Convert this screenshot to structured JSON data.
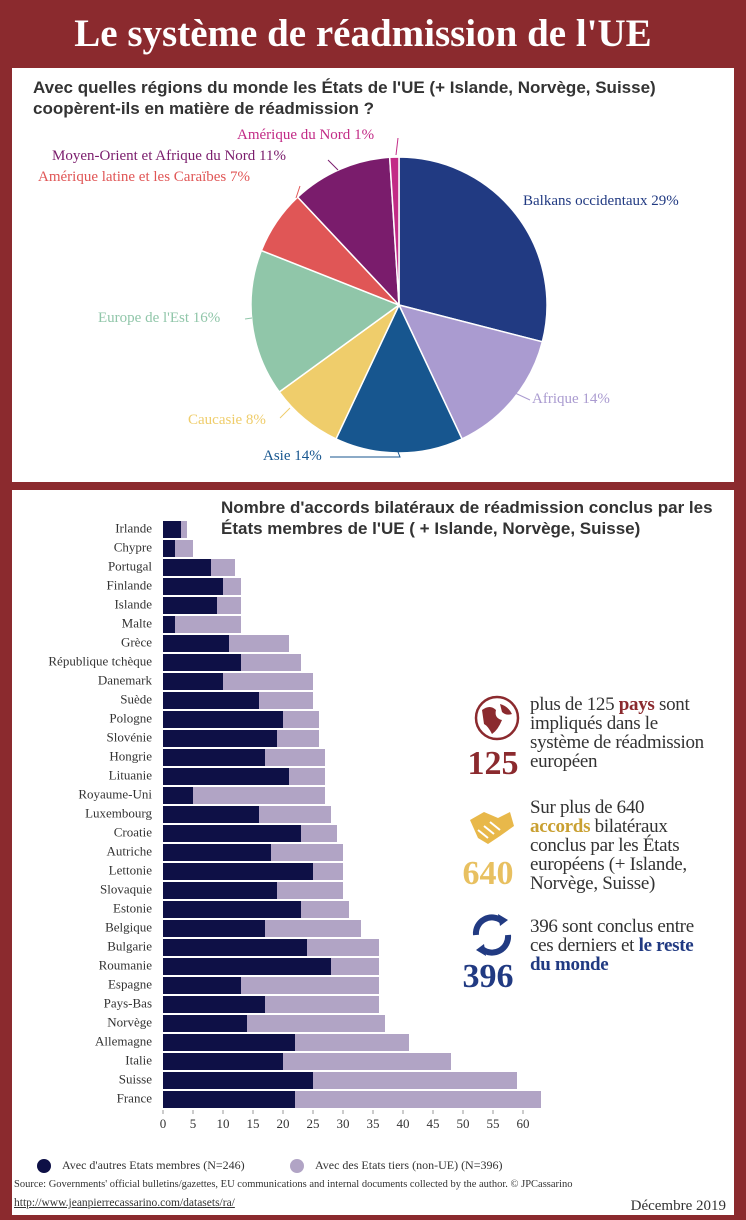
{
  "header": {
    "title": "Le système de réadmission de l'UE"
  },
  "chart_data": [
    {
      "type": "pie",
      "title": "Avec quelles régions du monde les États de l'UE (+ Islande, Norvège, Suisse) coopèrent-ils en matière de réadmission ?",
      "categories": [
        "Balkans occidentaux",
        "Afrique",
        "Asie",
        "Caucasie",
        "Europe de l'Est",
        "Amérique latine et les Caraïbes",
        "Moyen-Orient et Afrique du Nord",
        "Amérique du Nord"
      ],
      "values": [
        29,
        14,
        14,
        8,
        16,
        7,
        11,
        1
      ],
      "value_labels": [
        "29%",
        "14%",
        "14%",
        "8%",
        "16%",
        "7%",
        "11%",
        "1%"
      ],
      "colors": [
        "#213a82",
        "#aa9bd0",
        "#17568f",
        "#efcd6b",
        "#90c6a9",
        "#e05656",
        "#7a1c6c",
        "#c22b86"
      ]
    },
    {
      "type": "bar",
      "orientation": "horizontal",
      "stacked": true,
      "title": "Nombre d'accords bilatéraux de réadmission conclus par les États membres de l'UE ( + Islande, Norvège, Suisse)",
      "categories": [
        "Irlande",
        "Chypre",
        "Portugal",
        "Finlande",
        "Islande",
        "Malte",
        "Grèce",
        "République tchèque",
        "Danemark",
        "Suède",
        "Pologne",
        "Slovénie",
        "Hongrie",
        "Lituanie",
        "Royaume-Uni",
        "Luxembourg",
        "Croatie",
        "Autriche",
        "Lettonie",
        "Slovaquie",
        "Estonie",
        "Belgique",
        "Bulgarie",
        "Roumanie",
        "Espagne",
        "Pays-Bas",
        "Norvège",
        "Allemagne",
        "Italie",
        "Suisse",
        "France"
      ],
      "series": [
        {
          "name": "Avec d'autres Etats membres (N=246)",
          "color": "#0e1046",
          "values": [
            3,
            2,
            8,
            10,
            9,
            2,
            11,
            13,
            10,
            16,
            20,
            19,
            17,
            21,
            5,
            16,
            23,
            18,
            25,
            19,
            23,
            17,
            24,
            28,
            13,
            17,
            14,
            22,
            20,
            25,
            22
          ]
        },
        {
          "name": "Avec des Etats tiers (non-UE) (N=396)",
          "color": "#b1a4c5",
          "values": [
            1,
            3,
            4,
            3,
            4,
            11,
            10,
            10,
            15,
            9,
            6,
            7,
            10,
            6,
            22,
            12,
            6,
            12,
            5,
            11,
            8,
            16,
            12,
            8,
            23,
            19,
            23,
            19,
            28,
            34,
            41
          ]
        }
      ],
      "xlim": [
        0,
        65
      ],
      "xticks": [
        0,
        5,
        10,
        15,
        20,
        25,
        30,
        35,
        40,
        45,
        50,
        55,
        60
      ]
    }
  ],
  "info": {
    "items": [
      {
        "number": 125,
        "text": [
          "plus de 125 ",
          "pays",
          " sont impliqués dans le système de réadmission européen"
        ]
      },
      {
        "number": 640,
        "text": [
          "Sur plus de 640 ",
          "accords",
          " bilatéraux conclus par les États européens (+ Islande, Norvège, Suisse)"
        ]
      },
      {
        "number": 396,
        "text": [
          "396 sont conclus entre ces derniers et ",
          "le reste du monde"
        ]
      }
    ]
  },
  "footer": {
    "source": "Source: Governments' official bulletins/gazettes, EU communications and internal documents collected by the author. © JPCassarino",
    "url": "http://www.jeanpierrecassarino.com/datasets/ra/",
    "date": "Décembre 2019"
  }
}
